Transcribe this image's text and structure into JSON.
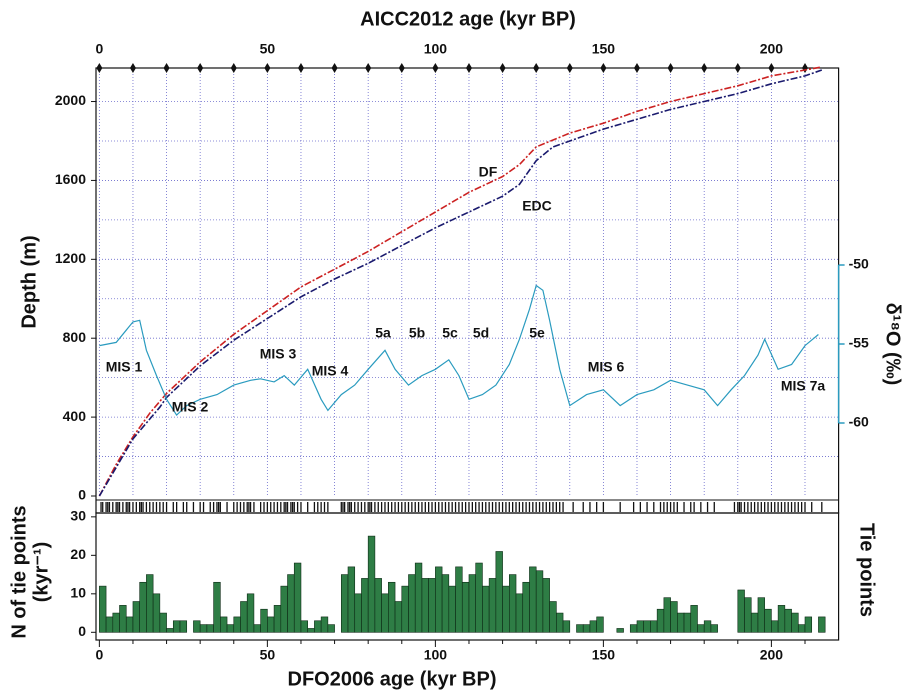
{
  "chart_data": [
    {
      "type": "line",
      "x2label": "AICC2012 age (kyr BP)",
      "ylabel": "Depth (m)",
      "y2label": "δ¹⁸O (‰)",
      "xlim": [
        -1,
        220
      ],
      "x2ticks": [
        0,
        50,
        100,
        150,
        200
      ],
      "x2minorticks": [
        0,
        10,
        20,
        30,
        40,
        50,
        60,
        70,
        80,
        90,
        100,
        110,
        120,
        130,
        140,
        150,
        160,
        170,
        180,
        190,
        200,
        210
      ],
      "ylim": [
        0,
        2170
      ],
      "yticks": [
        0,
        400,
        800,
        1200,
        1600,
        2000
      ],
      "ygridlines": [
        200,
        400,
        600,
        800,
        1000,
        1200,
        1400,
        1600,
        1800,
        2000
      ],
      "grid": true,
      "y2lim": [
        -60,
        -50
      ],
      "y2ticks": [
        -50,
        -55,
        -60
      ],
      "y2color": "#2a9bbf",
      "series": [
        {
          "name": "DF",
          "color": "#cc2222",
          "x": [
            0,
            5,
            10,
            15,
            20,
            30,
            40,
            50,
            60,
            70,
            80,
            90,
            100,
            110,
            120,
            125,
            130,
            140,
            150,
            160,
            170,
            180,
            190,
            200,
            210,
            215
          ],
          "values": [
            0,
            160,
            300,
            420,
            520,
            680,
            820,
            940,
            1060,
            1150,
            1240,
            1340,
            1440,
            1540,
            1620,
            1680,
            1770,
            1840,
            1890,
            1950,
            2000,
            2040,
            2080,
            2130,
            2160,
            2175
          ]
        },
        {
          "name": "EDC",
          "color": "#1a1a6e",
          "x": [
            0,
            10,
            18,
            20,
            30,
            40,
            50,
            60,
            70,
            80,
            90,
            100,
            110,
            120,
            125,
            130,
            135,
            140,
            150,
            160,
            170,
            180,
            190,
            200,
            210,
            215
          ],
          "values": [
            0,
            290,
            450,
            500,
            660,
            790,
            900,
            1010,
            1100,
            1180,
            1270,
            1360,
            1440,
            1520,
            1580,
            1700,
            1770,
            1800,
            1860,
            1910,
            1960,
            2000,
            2040,
            2090,
            2130,
            2160
          ]
        },
        {
          "name": "δ18O",
          "axis": "y2",
          "color": "#2a9bbf",
          "x": [
            0,
            5,
            10,
            12,
            14,
            17,
            20,
            23,
            26,
            30,
            35,
            40,
            45,
            48,
            52,
            55,
            58,
            62,
            66,
            68,
            72,
            76,
            80,
            85,
            88,
            92,
            96,
            100,
            104,
            107,
            110,
            114,
            118,
            122,
            125,
            128,
            130,
            132,
            134,
            137,
            140,
            145,
            150,
            155,
            160,
            165,
            170,
            175,
            180,
            184,
            188,
            192,
            196,
            198,
            202,
            206,
            210,
            214
          ],
          "values": [
            -55.1,
            -54.9,
            -53.6,
            -53.5,
            -55.4,
            -57.0,
            -58.5,
            -59.5,
            -58.9,
            -58.5,
            -58.2,
            -57.6,
            -57.3,
            -57.2,
            -57.4,
            -57.0,
            -57.6,
            -56.6,
            -58.5,
            -59.2,
            -58.2,
            -57.6,
            -56.6,
            -55.4,
            -56.6,
            -57.6,
            -57.0,
            -56.6,
            -56.0,
            -57.0,
            -58.5,
            -58.2,
            -57.6,
            -56.3,
            -54.7,
            -52.8,
            -51.3,
            -51.6,
            -53.5,
            -56.6,
            -58.9,
            -58.2,
            -57.9,
            -58.9,
            -58.2,
            -57.9,
            -57.3,
            -57.6,
            -57.9,
            -58.9,
            -57.9,
            -57.0,
            -55.7,
            -54.7,
            -56.6,
            -56.3,
            -55.1,
            -54.4
          ]
        }
      ],
      "annotations": [
        "MIS 1",
        "MIS 2",
        "MIS 3",
        "MIS 4",
        "5a",
        "5b",
        "5c",
        "5d",
        "5e",
        "MIS 6",
        "MIS 7a"
      ]
    },
    {
      "type": "rug",
      "ylabel": "Tie points",
      "color": "#111111",
      "x": [
        0.5,
        1,
        2,
        2.5,
        3,
        4,
        5,
        5.5,
        6,
        7,
        8,
        8.5,
        9,
        10,
        11,
        12,
        12.5,
        13,
        14,
        15,
        16,
        17,
        18,
        19,
        20,
        22,
        23,
        25,
        26,
        28,
        30,
        31,
        33,
        34,
        35,
        35.5,
        36,
        38,
        40,
        41,
        42,
        43,
        44,
        44.5,
        45,
        46,
        48,
        49,
        50,
        51,
        52,
        53,
        54,
        55,
        55.5,
        56,
        57,
        57.5,
        58,
        59,
        60,
        62,
        64,
        65,
        66,
        67,
        68,
        72,
        72.5,
        73,
        74,
        74.5,
        75,
        76,
        77,
        78,
        79,
        80,
        80.5,
        81,
        82,
        83,
        84,
        85,
        86,
        87,
        88,
        89,
        90,
        91,
        92,
        93,
        94,
        95,
        96,
        97,
        98,
        99,
        100,
        101,
        102,
        103,
        104,
        105,
        106,
        107,
        108,
        109,
        110,
        111,
        112,
        113,
        114,
        115,
        116,
        117,
        118,
        119,
        120,
        121,
        122,
        123,
        124,
        125,
        126,
        127,
        128,
        129,
        130,
        131,
        132,
        133,
        134,
        135,
        136,
        137,
        138,
        141,
        144,
        146,
        148,
        150,
        155,
        159,
        161,
        163,
        165,
        167,
        168,
        169,
        170,
        171,
        172,
        174,
        176,
        177,
        179,
        181,
        183,
        189,
        190,
        190.5,
        191,
        192,
        193,
        194,
        195,
        196,
        197,
        198,
        199,
        200,
        201,
        202,
        203,
        204,
        205,
        206,
        207,
        208,
        209,
        210,
        212,
        215
      ]
    },
    {
      "type": "histogram",
      "xlabel": "DFO2006 age (kyr BP)",
      "ylabel": [
        "N of tie points",
        "(kyr⁻¹)"
      ],
      "color": "#2e7d45",
      "labelcolor": "#2e8b3e",
      "xlim": [
        -1,
        220
      ],
      "xticks": [
        0,
        50,
        100,
        150,
        200
      ],
      "xminorticks": [
        0,
        10,
        20,
        30,
        40,
        50,
        60,
        70,
        80,
        90,
        100,
        110,
        120,
        130,
        140,
        150,
        160,
        170,
        180,
        190,
        200,
        210
      ],
      "ylim": [
        -2,
        31
      ],
      "yticks": [
        0,
        10,
        20,
        30
      ],
      "bins": [
        0,
        2,
        4,
        6,
        8,
        10,
        12,
        14,
        16,
        18,
        20,
        22,
        24,
        26,
        28,
        30,
        32,
        34,
        36,
        38,
        40,
        42,
        44,
        46,
        48,
        50,
        52,
        54,
        56,
        58,
        60,
        62,
        64,
        66,
        68,
        70,
        72,
        74,
        76,
        78,
        80,
        82,
        84,
        86,
        88,
        90,
        92,
        94,
        96,
        98,
        100,
        102,
        104,
        106,
        108,
        110,
        112,
        114,
        116,
        118,
        120,
        122,
        124,
        126,
        128,
        130,
        132,
        134,
        136,
        138,
        140,
        142,
        144,
        146,
        148,
        150,
        152,
        154,
        156,
        158,
        160,
        162,
        164,
        166,
        168,
        170,
        172,
        174,
        176,
        178,
        180,
        182,
        184,
        186,
        188,
        190,
        192,
        194,
        196,
        198,
        200,
        202,
        204,
        206,
        208,
        210,
        212,
        214,
        216
      ],
      "values": [
        12,
        4,
        5,
        7,
        4,
        8,
        13,
        15,
        10,
        5,
        1,
        3,
        3,
        0,
        3,
        2,
        2,
        13,
        4,
        2,
        4,
        8,
        10,
        2,
        6,
        4,
        7,
        12,
        15,
        18,
        3,
        1,
        3,
        4,
        2,
        0,
        15,
        17,
        10,
        14,
        25,
        14,
        10,
        13,
        8,
        12,
        15,
        18,
        14,
        14,
        17,
        15,
        12,
        17,
        13,
        15,
        18,
        12,
        14,
        21,
        12,
        15,
        10,
        13,
        17,
        16,
        14,
        8,
        5,
        3,
        0,
        2,
        2,
        3,
        4,
        0,
        0,
        1,
        0,
        2,
        3,
        3,
        3,
        6,
        9,
        8,
        5,
        5,
        7,
        2,
        3,
        2,
        0,
        0,
        0,
        11,
        9,
        5,
        9,
        6,
        3,
        7,
        6,
        5,
        2,
        4,
        0,
        4
      ]
    }
  ]
}
